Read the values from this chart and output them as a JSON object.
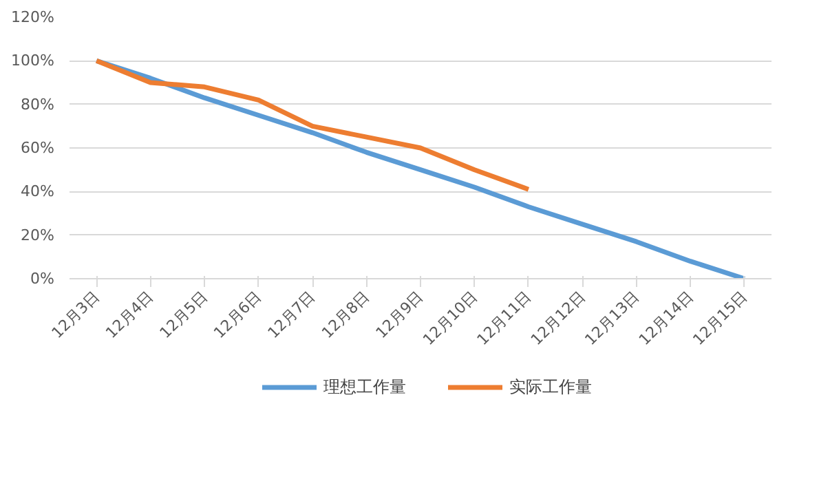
{
  "chart_data": {
    "type": "line",
    "categories": [
      "12月3日",
      "12月4日",
      "12月5日",
      "12月6日",
      "12月7日",
      "12月8日",
      "12月9日",
      "12月10日",
      "12月11日",
      "12月12日",
      "12月13日",
      "12月14日",
      "12月15日"
    ],
    "series": [
      {
        "name": "理想工作量",
        "color": "#5b9bd5",
        "values": [
          100,
          92,
          83,
          75,
          67,
          58,
          50,
          42,
          33,
          25,
          17,
          8,
          0
        ]
      },
      {
        "name": "实际工作量",
        "color": "#ed7d31",
        "values": [
          100,
          90,
          88,
          82,
          70,
          65,
          60,
          50,
          41,
          null,
          null,
          null,
          null
        ]
      }
    ],
    "ylim": [
      0,
      120
    ],
    "yticks": [
      {
        "value": 0,
        "label": "0%"
      },
      {
        "value": 20,
        "label": "20%"
      },
      {
        "value": 40,
        "label": "40%"
      },
      {
        "value": 60,
        "label": "60%"
      },
      {
        "value": 80,
        "label": "80%"
      },
      {
        "value": 100,
        "label": "100%"
      },
      {
        "value": 120,
        "label": "120%"
      }
    ],
    "grid": "y",
    "legend": "bottom",
    "marker": "none",
    "line_style": "solid"
  }
}
